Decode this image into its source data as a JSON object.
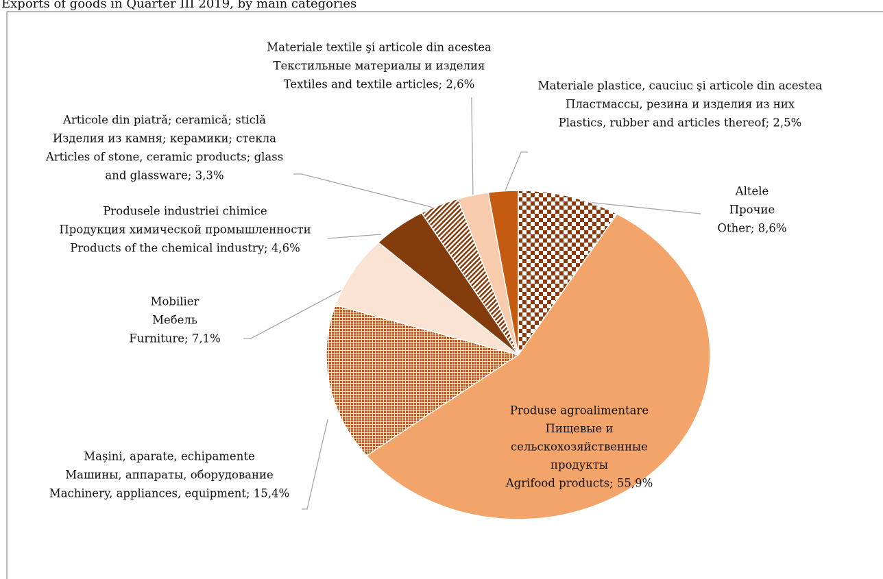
{
  "chart_data": {
    "type": "pie",
    "title": "Exports of goods in Quarter III 2019, by main categories",
    "categories": [
      [
        "Altele",
        "Прочие",
        "Other; 8,6%"
      ],
      [
        "Produse agroalimentare",
        "Пищевые и",
        "сельскохозяйственные",
        "продукты",
        "Agrifood products; 55,9%"
      ],
      [
        "Mașini, aparate, echipamente",
        "Машины, аппараты, оборудование",
        "Machinery, appliances, equipment; 15,4%"
      ],
      [
        "Mobilier",
        "Мебель",
        "Furniture; 7,1%"
      ],
      [
        "Produsele industriei chimice",
        "Продукция химической промышленности",
        "Products of the chemical industry; 4,6%"
      ],
      [
        "Articole din piatră; ceramică; sticlă",
        "Изделия из камня; керамики; стекла",
        "Articles of stone, ceramic products; glass",
        "and glassware; 3,3%"
      ],
      [
        "Materiale textile şi articole din acestea",
        "Текстильные материалы и изделия",
        "Textiles and textile articles; 2,6%"
      ],
      [
        "Materiale plastice, cauciuc şi articole din acestea",
        "Пластмассы, резина и изделия из них",
        "Plastics, rubber and articles thereof; 2,5%"
      ]
    ],
    "values": [
      8.6,
      55.9,
      15.4,
      7.1,
      4.6,
      3.3,
      2.6,
      2.5
    ],
    "colors": [
      "#8b3a0e",
      "#f2a46b",
      "#c0561a",
      "#fbe3d4",
      "#843c0c",
      "#843c0c",
      "#f8cbad",
      "#c55a11"
    ],
    "patterns": [
      "checker",
      "solid",
      "dots",
      "solid",
      "solid",
      "stripes",
      "solid",
      "solid"
    ]
  }
}
